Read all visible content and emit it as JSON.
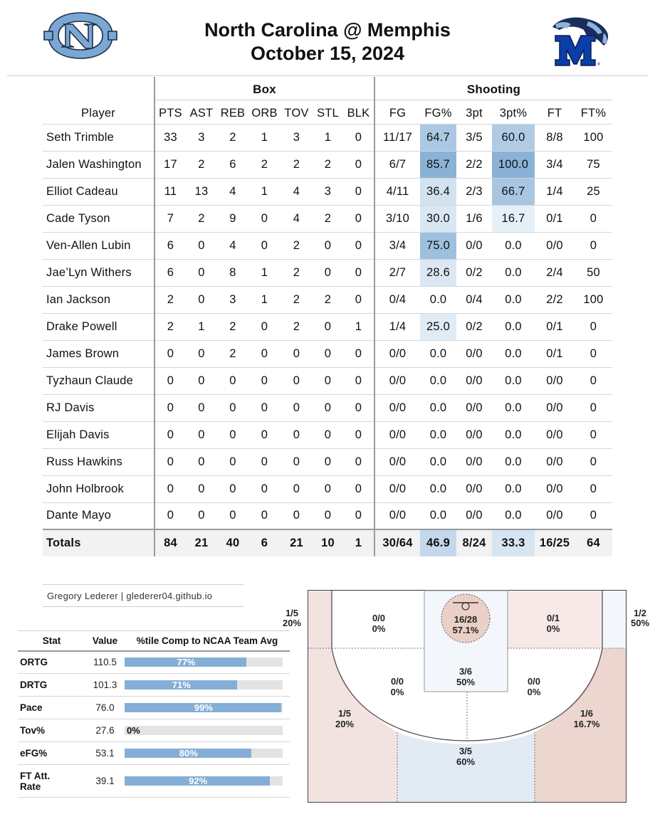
{
  "header": {
    "title_line1": "North Carolina @ Memphis",
    "title_line2": "October 15, 2024",
    "left_logo": "unc-logo",
    "right_logo": "memphis-tiger-logo",
    "right_logo_letter": "M",
    "colors": {
      "unc_blue": "#7ba7d4",
      "memphis_blue": "#0a3ea8"
    }
  },
  "box": {
    "group_labels": {
      "box": "Box",
      "shooting": "Shooting"
    },
    "columns": [
      "Player",
      "PTS",
      "AST",
      "REB",
      "ORB",
      "TOV",
      "STL",
      "BLK",
      "FG",
      "FG%",
      "3pt",
      "3pt%",
      "FT",
      "FT%"
    ],
    "rows": [
      [
        "Seth Trimble",
        "33",
        "3",
        "2",
        "1",
        "3",
        "1",
        "0",
        "11/17",
        "64.7",
        "3/5",
        "60.0",
        "8/8",
        "100"
      ],
      [
        "Jalen Washington",
        "17",
        "2",
        "6",
        "2",
        "2",
        "2",
        "0",
        "6/7",
        "85.7",
        "2/2",
        "100.0",
        "3/4",
        "75"
      ],
      [
        "Elliot Cadeau",
        "11",
        "13",
        "4",
        "1",
        "4",
        "3",
        "0",
        "4/11",
        "36.4",
        "2/3",
        "66.7",
        "1/4",
        "25"
      ],
      [
        "Cade Tyson",
        "7",
        "2",
        "9",
        "0",
        "4",
        "2",
        "0",
        "3/10",
        "30.0",
        "1/6",
        "16.7",
        "0/1",
        "0"
      ],
      [
        "Ven-Allen Lubin",
        "6",
        "0",
        "4",
        "0",
        "2",
        "0",
        "0",
        "3/4",
        "75.0",
        "0/0",
        "0.0",
        "0/0",
        "0"
      ],
      [
        "Jae’Lyn Withers",
        "6",
        "0",
        "8",
        "1",
        "2",
        "0",
        "0",
        "2/7",
        "28.6",
        "0/2",
        "0.0",
        "2/4",
        "50"
      ],
      [
        "Ian Jackson",
        "2",
        "0",
        "3",
        "1",
        "2",
        "2",
        "0",
        "0/4",
        "0.0",
        "0/4",
        "0.0",
        "2/2",
        "100"
      ],
      [
        "Drake Powell",
        "2",
        "1",
        "2",
        "0",
        "2",
        "0",
        "1",
        "1/4",
        "25.0",
        "0/2",
        "0.0",
        "0/1",
        "0"
      ],
      [
        "James Brown",
        "0",
        "0",
        "2",
        "0",
        "0",
        "0",
        "0",
        "0/0",
        "0.0",
        "0/0",
        "0.0",
        "0/1",
        "0"
      ],
      [
        "Tyzhaun Claude",
        "0",
        "0",
        "0",
        "0",
        "0",
        "0",
        "0",
        "0/0",
        "0.0",
        "0/0",
        "0.0",
        "0/0",
        "0"
      ],
      [
        "RJ Davis",
        "0",
        "0",
        "0",
        "0",
        "0",
        "0",
        "0",
        "0/0",
        "0.0",
        "0/0",
        "0.0",
        "0/0",
        "0"
      ],
      [
        "Elijah Davis",
        "0",
        "0",
        "0",
        "0",
        "0",
        "0",
        "0",
        "0/0",
        "0.0",
        "0/0",
        "0.0",
        "0/0",
        "0"
      ],
      [
        "Russ Hawkins",
        "0",
        "0",
        "0",
        "0",
        "0",
        "0",
        "0",
        "0/0",
        "0.0",
        "0/0",
        "0.0",
        "0/0",
        "0"
      ],
      [
        "John Holbrook",
        "0",
        "0",
        "0",
        "0",
        "0",
        "0",
        "0",
        "0/0",
        "0.0",
        "0/0",
        "0.0",
        "0/0",
        "0"
      ],
      [
        "Dante Mayo",
        "0",
        "0",
        "0",
        "0",
        "0",
        "0",
        "0",
        "0/0",
        "0.0",
        "0/0",
        "0.0",
        "0/0",
        "0"
      ]
    ],
    "totals": [
      "Totals",
      "84",
      "21",
      "40",
      "6",
      "21",
      "10",
      "1",
      "30/64",
      "46.9",
      "8/24",
      "33.3",
      "16/25",
      "64"
    ],
    "highlight_colors": {
      "100.0": "#8ab2d6",
      "85.7": "#8ab2d6",
      "75.0": "#9dc0df",
      "66.7": "#a8c6e2",
      "64.7": "#aac8e3",
      "60.0": "#b0cce5",
      "46.9": "#c3d8ec",
      "36.4": "#d2e2f1",
      "33.3": "#d6e5f2",
      "30.0": "#d9e7f3",
      "28.6": "#dbe8f4",
      "25.0": "#dfebf5",
      "16.7": "#e6f0f8"
    }
  },
  "credit": "Gregory Lederer | glederer04.github.io",
  "stats": {
    "headers": [
      "Stat",
      "Value",
      "%tile Comp to NCAA Team Avg"
    ],
    "rows": [
      {
        "name": "ORTG",
        "value": "110.5",
        "pct": 77,
        "pct_label": "77%"
      },
      {
        "name": "DRTG",
        "value": "101.3",
        "pct": 71,
        "pct_label": "71%"
      },
      {
        "name": "Pace",
        "value": "76.0",
        "pct": 99,
        "pct_label": "99%"
      },
      {
        "name": "Tov%",
        "value": "27.6",
        "pct": 0,
        "pct_label": "0%"
      },
      {
        "name": "eFG%",
        "value": "53.1",
        "pct": 80,
        "pct_label": "80%"
      },
      {
        "name": "FT Att. Rate",
        "name_line1": "FT Att.",
        "name_line2": "Rate",
        "value": "39.1",
        "pct": 92,
        "pct_label": "92%"
      }
    ],
    "bar_color": "#84aed5"
  },
  "court": {
    "zones": {
      "left_corner": {
        "made_att": "1/5",
        "pct": "20%"
      },
      "right_corner": {
        "made_att": "1/2",
        "pct": "50%"
      },
      "left_short_mid": {
        "made_att": "0/0",
        "pct": "0%"
      },
      "right_short_mid": {
        "made_att": "0/1",
        "pct": "0%"
      },
      "rim": {
        "made_att": "16/28",
        "pct": "57.1%"
      },
      "paint": {
        "made_att": "3/6",
        "pct": "50%"
      },
      "left_elbow": {
        "made_att": "0/0",
        "pct": "0%"
      },
      "right_elbow": {
        "made_att": "0/0",
        "pct": "0%"
      },
      "left_wing_three": {
        "made_att": "1/5",
        "pct": "20%"
      },
      "right_wing_three": {
        "made_att": "1/6",
        "pct": "16.7%"
      },
      "top_three": {
        "made_att": "3/5",
        "pct": "60%"
      }
    },
    "colors": {
      "warm_light": "#f7e9e7",
      "warm_mid": "#f0ddd9",
      "warm_strong": "#ecd5ce",
      "cool_light": "#e2ebf4",
      "cool_faint": "#f3f6fb",
      "rim": "#ebcfc6"
    }
  }
}
